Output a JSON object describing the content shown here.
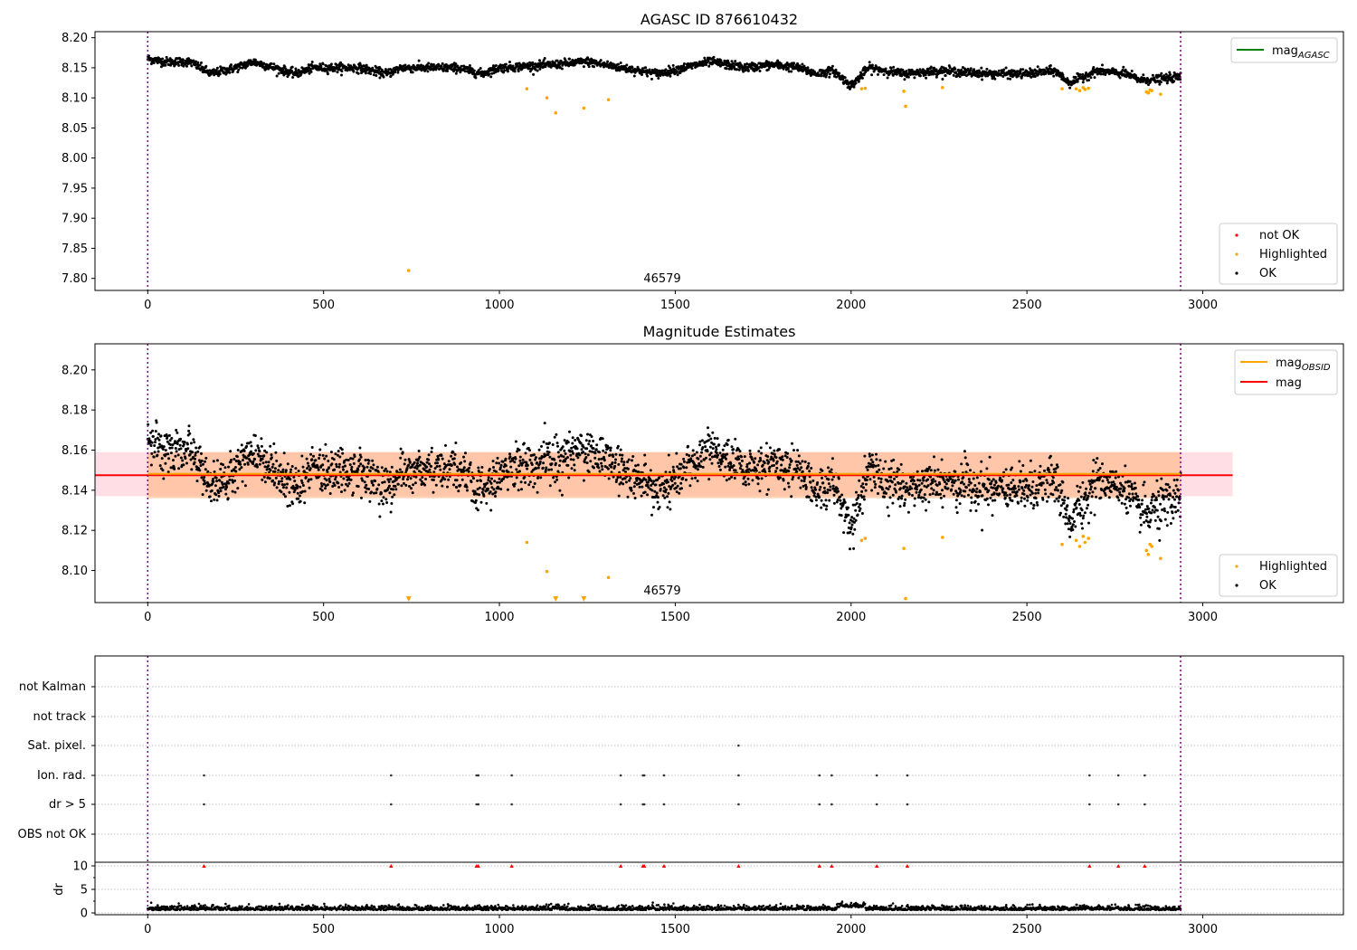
{
  "colors": {
    "ok": "#000000",
    "highlighted": "#ffa500",
    "not_ok": "#ff0000",
    "mag_agasc": "#008000",
    "mag_obsid": "#ffa500",
    "mag": "#ff0000",
    "band_obsid": "#ffb07a",
    "band_mag": "#ffc0cb",
    "obs_boundary": "#800080",
    "grid": "#b0b0b0"
  },
  "chart_data": [
    {
      "type": "scatter",
      "title": "AGASC ID 876610432",
      "xlim": [
        -150,
        3400
      ],
      "ylim": [
        7.78,
        8.21
      ],
      "xticks": [
        0,
        500,
        1000,
        1500,
        2000,
        2500,
        3000
      ],
      "yticks": [
        7.8,
        7.85,
        7.9,
        7.95,
        8.0,
        8.05,
        8.1,
        8.15,
        8.2
      ],
      "vlines": [
        0,
        2937
      ],
      "annotation": {
        "text": "46579",
        "x": 1470,
        "y": 7.79
      },
      "series_ok": {
        "name": "OK",
        "anchors_x": [
          0,
          50,
          120,
          180,
          250,
          300,
          420,
          470,
          600,
          680,
          720,
          800,
          880,
          950,
          1000,
          1150,
          1250,
          1350,
          1450,
          1600,
          1700,
          1780,
          1850,
          1900,
          1950,
          2000,
          2050,
          2150,
          2250,
          2400,
          2500,
          2580,
          2620,
          2700,
          2780,
          2820,
          2860,
          2937
        ],
        "anchors_y": [
          8.165,
          8.16,
          8.16,
          8.14,
          8.15,
          8.16,
          8.14,
          8.15,
          8.15,
          8.14,
          8.15,
          8.15,
          8.15,
          8.14,
          8.15,
          8.155,
          8.16,
          8.15,
          8.14,
          8.16,
          8.15,
          8.155,
          8.15,
          8.14,
          8.145,
          8.12,
          8.15,
          8.14,
          8.145,
          8.14,
          8.14,
          8.145,
          8.125,
          8.145,
          8.14,
          8.13,
          8.13,
          8.135
        ],
        "scatter": 0.008,
        "count": 2800
      },
      "series_highlighted": {
        "name": "Highlighted",
        "x": [
          742,
          1078,
          1135,
          1160,
          1240,
          1310,
          2030,
          2040,
          2150,
          2155,
          2260,
          2600,
          2640,
          2650,
          2660,
          2665,
          2675,
          2840,
          2845,
          2850,
          2855,
          2880
        ],
        "y": [
          7.813,
          8.115,
          8.1,
          8.075,
          8.083,
          8.097,
          8.115,
          8.116,
          8.111,
          8.086,
          8.117,
          8.115,
          8.115,
          8.112,
          8.117,
          8.114,
          8.116,
          8.11,
          8.108,
          8.113,
          8.112,
          8.106
        ]
      },
      "legend_lines": [
        {
          "label": "mag",
          "sub": "AGASC",
          "color": "#008000"
        }
      ],
      "legend_points": [
        {
          "label": "not OK",
          "color": "#ff0000"
        },
        {
          "label": "Highlighted",
          "color": "#ffa500"
        },
        {
          "label": "OK",
          "color": "#000000"
        }
      ]
    },
    {
      "type": "scatter",
      "title": "Magnitude Estimates",
      "xlim": [
        -150,
        3400
      ],
      "ylim": [
        8.084,
        8.213
      ],
      "xticks": [
        0,
        500,
        1000,
        1500,
        2000,
        2500,
        3000
      ],
      "yticks": [
        8.1,
        8.12,
        8.14,
        8.16,
        8.18,
        8.2
      ],
      "vlines": [
        0,
        2937
      ],
      "annotation": {
        "text": "46579",
        "x": 1470,
        "y": 8.0875
      },
      "mag_obsid": {
        "x": [
          0,
          2937
        ],
        "y": 8.1475,
        "band": [
          8.136,
          8.159
        ]
      },
      "mag": {
        "x": [
          -150,
          3085
        ],
        "y": 8.1475,
        "band": [
          8.137,
          8.159
        ]
      },
      "highlighted_offscale_x": [
        742,
        1160,
        1240
      ],
      "highlighted_x": [
        1078,
        1135,
        1310,
        2030,
        2040,
        2150,
        2155,
        2260,
        2600,
        2640,
        2650,
        2660,
        2665,
        2675,
        2840,
        2845,
        2850,
        2855,
        2880
      ],
      "highlighted_y": [
        8.114,
        8.0995,
        8.0965,
        8.115,
        8.116,
        8.111,
        8.086,
        8.1165,
        8.113,
        8.115,
        8.112,
        8.117,
        8.114,
        8.116,
        8.11,
        8.108,
        8.113,
        8.112,
        8.106
      ],
      "legend_lines": [
        {
          "label": "mag",
          "sub": "OBSID",
          "color": "#ffa500"
        },
        {
          "label": "mag",
          "sub": "",
          "color": "#ff0000"
        }
      ],
      "legend_points": [
        {
          "label": "Highlighted",
          "color": "#ffa500"
        },
        {
          "label": "OK",
          "color": "#000000"
        }
      ]
    },
    {
      "type": "scatter",
      "title": "",
      "xlim": [
        -150,
        3400
      ],
      "xticks": [
        0,
        500,
        1000,
        1500,
        2000,
        2500,
        3000
      ],
      "vlines": [
        0,
        2937
      ],
      "flag_rows": [
        "not Kalman",
        "not track",
        "Sat. pixel.",
        "Ion. rad.",
        "dr > 5",
        "OBS not OK"
      ],
      "flag_events_ion_rad": [
        160,
        692,
        935,
        940,
        1035,
        1345,
        1408,
        1412,
        1468,
        1680,
        1910,
        1945,
        2073,
        2160,
        2678,
        2760,
        2835
      ],
      "flag_events_sat_pixel": [
        1680
      ],
      "dr_ylabel": "dr",
      "dr_yticks": [
        0,
        5,
        10
      ],
      "dr_threshold": 10,
      "dr_typical": 0.6
    }
  ]
}
